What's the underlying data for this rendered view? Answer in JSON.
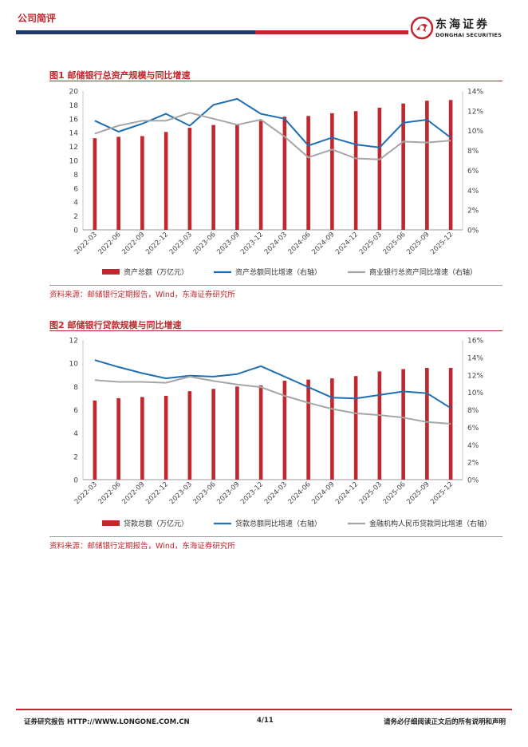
{
  "header": {
    "title": "公司简评",
    "logo_cn": "东海证券",
    "logo_en": "DONGHAI SECURITIES",
    "colors": {
      "red": "#c1272d",
      "navy": "#1f3a6b"
    }
  },
  "figures": [
    {
      "title": "图1  邮储银行总资产规模与同比增速",
      "source": "资料来源：邮储银行定期报告，Wind，东海证券研究所"
    },
    {
      "title": "图2  邮储银行贷款规模与同比增速",
      "source": "资料来源：邮储银行定期报告，Wind，东海证券研究所"
    }
  ],
  "chart_data": [
    {
      "type": "bar",
      "title": "邮储银行总资产规模与同比增速",
      "categories": [
        "2022-03",
        "2022-06",
        "2022-09",
        "2022-12",
        "2023-03",
        "2023-06",
        "2023-09",
        "2023-12",
        "2024-03",
        "2024-06",
        "2024-09",
        "2024-12",
        "2025-03",
        "2025-06",
        "2025-09",
        "2025-12"
      ],
      "left_ylim": [
        0,
        20
      ],
      "left_ticks": [
        "0",
        "2",
        "4",
        "6",
        "8",
        "10",
        "12",
        "14",
        "16",
        "18",
        "20"
      ],
      "right_ylim": [
        0,
        14
      ],
      "right_ticks": [
        "0%",
        "2%",
        "4%",
        "6%",
        "8%",
        "10%",
        "12%",
        "14%"
      ],
      "bar_series": {
        "name": "资产总额（万亿元）",
        "color": "#c1272d",
        "values": [
          13.2,
          13.4,
          13.5,
          14.1,
          14.7,
          15.1,
          15.2,
          15.7,
          16.3,
          16.4,
          16.8,
          17.1,
          17.6,
          18.2,
          18.6,
          18.7
        ]
      },
      "line_series": [
        {
          "name": "资产总额同比增速（右轴）",
          "color": "#1f6fb2",
          "values": [
            11.0,
            9.9,
            10.7,
            11.7,
            10.5,
            12.6,
            13.2,
            11.7,
            11.2,
            8.5,
            9.3,
            8.6,
            8.3,
            10.8,
            11.1,
            9.3
          ]
        },
        {
          "name": "商业银行总资产同比增速（右轴）",
          "color": "#a6a6a6",
          "values": [
            9.7,
            10.5,
            11.0,
            11.0,
            11.8,
            11.2,
            10.6,
            11.1,
            9.4,
            7.3,
            8.1,
            7.2,
            7.1,
            8.9,
            8.8,
            9.0
          ]
        }
      ]
    },
    {
      "type": "bar",
      "title": "邮储银行贷款规模与同比增速",
      "categories": [
        "2022-03",
        "2022-06",
        "2022-09",
        "2022-12",
        "2023-03",
        "2023-06",
        "2023-09",
        "2023-12",
        "2024-03",
        "2024-06",
        "2024-09",
        "2024-12",
        "2025-03",
        "2025-06",
        "2025-09",
        "2025-12"
      ],
      "left_ylim": [
        0,
        12
      ],
      "left_ticks": [
        "0",
        "2",
        "4",
        "6",
        "8",
        "10",
        "12"
      ],
      "right_ylim": [
        0,
        16
      ],
      "right_ticks": [
        "0%",
        "2%",
        "4%",
        "6%",
        "8%",
        "10%",
        "12%",
        "14%",
        "16%"
      ],
      "bar_series": {
        "name": "贷款总额（万亿元）",
        "color": "#c1272d",
        "values": [
          6.8,
          7.0,
          7.1,
          7.2,
          7.6,
          7.8,
          8.0,
          8.1,
          8.5,
          8.6,
          8.7,
          8.9,
          9.3,
          9.5,
          9.6,
          9.6
        ]
      },
      "line_series": [
        {
          "name": "贷款总额同比增速（右轴）",
          "color": "#1f6fb2",
          "values": [
            13.7,
            12.9,
            12.2,
            11.6,
            11.9,
            11.8,
            12.1,
            13.0,
            11.8,
            10.6,
            9.4,
            9.3,
            9.7,
            10.1,
            9.9,
            8.2
          ]
        },
        {
          "name": "金融机构人民币贷款同比增速（右轴）",
          "color": "#a6a6a6",
          "values": [
            11.4,
            11.2,
            11.2,
            11.1,
            11.8,
            11.3,
            10.9,
            10.6,
            9.6,
            8.8,
            8.1,
            7.6,
            7.4,
            7.1,
            6.6,
            6.4
          ]
        }
      ]
    }
  ],
  "footer": {
    "left": "证券研究报告   HTTP://WWW.LONGONE.COM.CN",
    "page": "4/11",
    "right": "请务必仔细阅读正文后的所有说明和声明"
  }
}
